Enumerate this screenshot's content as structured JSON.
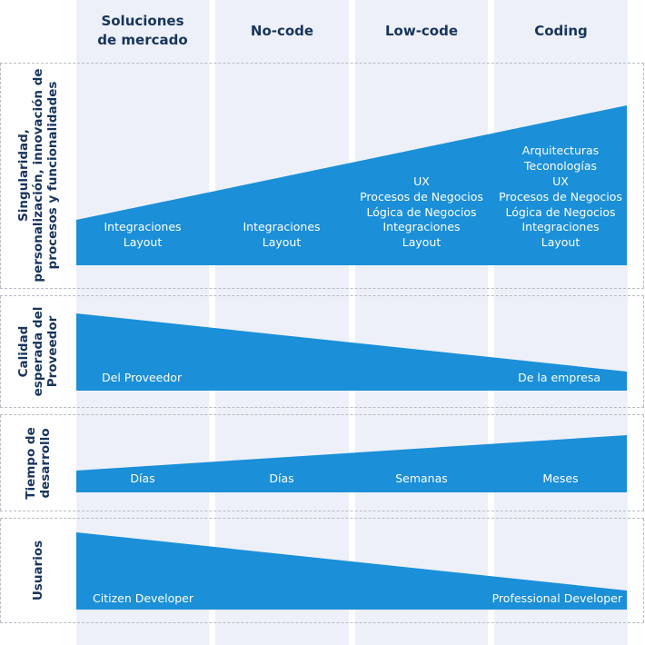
{
  "colors": {
    "column_bg": "#edf0f8",
    "wedge": "#1b8fd8",
    "heading": "#17345c",
    "dashed_border": "#b8bcc4"
  },
  "columns": [
    {
      "title": "Soluciones\nde mercado"
    },
    {
      "title": "No-code"
    },
    {
      "title": "Low-code"
    },
    {
      "title": "Coding"
    }
  ],
  "rows": {
    "singularidad": {
      "label": "Singularidad,\npersonalización, innovación de\nprocesos y funcionalidades",
      "trend": "increasing",
      "cells": [
        "Integraciones\nLayout",
        "Integraciones\nLayout",
        "UX\nProcesos de Negocios\nLógica de Negocios\nIntegraciones\nLayout",
        "Arquitecturas\nTeconologías\nUX\nProcesos de Negocios\nLógica de Negocios\nIntegraciones\nLayout"
      ]
    },
    "calidad": {
      "label": "Calidad\nesperada del\nProveedor",
      "trend": "decreasing",
      "start_text": "Del Proveedor",
      "end_text": "De la empresa"
    },
    "tiempo": {
      "label": "Tiempo de\ndesarrollo",
      "trend": "increasing",
      "cells": [
        "Días",
        "Días",
        "Semanas",
        "Meses"
      ]
    },
    "usuarios": {
      "label": "Usuarios",
      "trend": "decreasing",
      "start_text": "Citizen Developer",
      "end_text": "Professional Developer"
    }
  }
}
